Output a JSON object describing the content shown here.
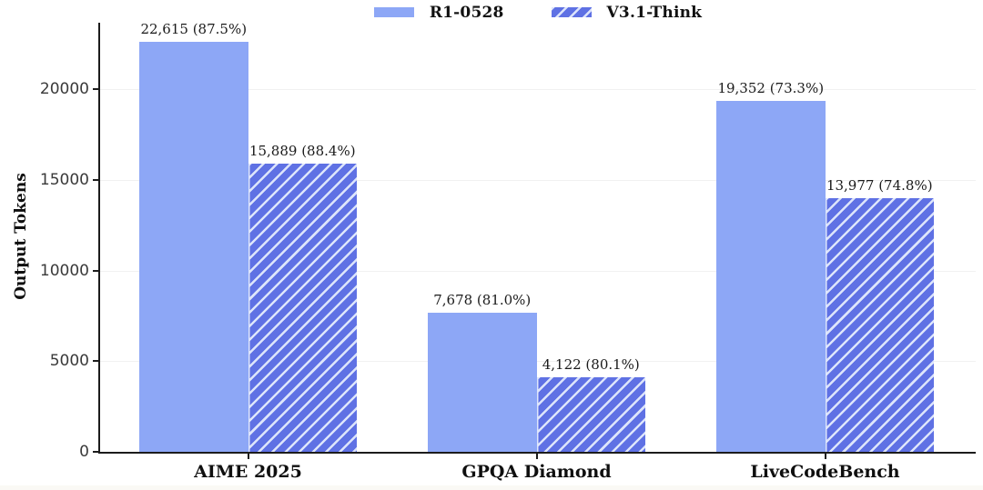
{
  "legend": {
    "items": [
      {
        "label": "R1-0528",
        "swatch": "solid"
      },
      {
        "label": "V3.1-Think",
        "swatch": "hatched"
      }
    ]
  },
  "chart_data": {
    "type": "bar",
    "title": "",
    "xlabel": "",
    "ylabel": "Output Tokens",
    "categories": [
      "AIME 2025",
      "GPQA Diamond",
      "LiveCodeBench"
    ],
    "series": [
      {
        "name": "R1-0528",
        "style": "solid",
        "values": [
          22615,
          7678,
          19352
        ],
        "labels": [
          "22,615 (87.5%)",
          "7,678 (81.0%)",
          "19,352 (73.3%)"
        ]
      },
      {
        "name": "V3.1-Think",
        "style": "hatched",
        "values": [
          15889,
          4122,
          13977
        ],
        "labels": [
          "15,889 (88.4%)",
          "4,122 (80.1%)",
          "13,977 (74.8%)"
        ]
      }
    ],
    "ylim": [
      0,
      23000
    ],
    "yticks": [
      0,
      5000,
      10000,
      15000,
      20000
    ],
    "grid": true,
    "legend_position": "top-center",
    "colors": {
      "solid_fill": "#8da7f6",
      "hatch_fill": "#5f71e4",
      "hatch_stripe": "#dde5fb",
      "axis": "#1c1c1c",
      "grid": "#f1f1f1",
      "text": "#1a1a1a"
    }
  }
}
